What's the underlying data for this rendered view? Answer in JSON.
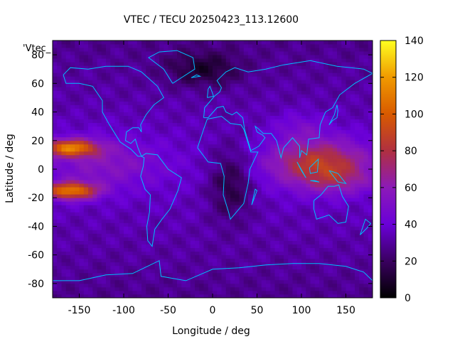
{
  "chart_data": {
    "type": "heatmap",
    "title": "VTEC / TECU 20250423_113.12600",
    "xlabel": "Longitude / deg",
    "ylabel": "Latitude / deg",
    "key_label": "'Vtec_",
    "xlim": [
      -180,
      180
    ],
    "ylim": [
      -90,
      90
    ],
    "x_ticks": [
      -150,
      -100,
      -50,
      0,
      50,
      100,
      150
    ],
    "y_ticks": [
      -80,
      -60,
      -40,
      -20,
      0,
      20,
      40,
      60,
      80
    ],
    "colorbar": {
      "min": 0,
      "max": 140,
      "ticks": [
        0,
        20,
        40,
        60,
        80,
        100,
        120,
        140
      ],
      "palette": [
        "#000000",
        "#3a0060",
        "#6a00d8",
        "#8c1ab8",
        "#b03040",
        "#d85a00",
        "#f09a00",
        "#ffff20"
      ]
    },
    "grid": false,
    "coastline_color": "#00bfff",
    "blobs": [
      {
        "lon": 120,
        "lat": 5,
        "slon": 55,
        "slat": 16,
        "amp": 48
      },
      {
        "lon": 140,
        "lat": -8,
        "slon": 40,
        "slat": 10,
        "amp": 18
      },
      {
        "lon": -160,
        "lat": 15,
        "slon": 30,
        "slat": 6,
        "amp": 70
      },
      {
        "lon": -160,
        "lat": -15,
        "slon": 30,
        "slat": 6,
        "amp": 72
      },
      {
        "lon": -120,
        "lat": 5,
        "slon": 60,
        "slat": 18,
        "amp": 18
      },
      {
        "lon": 20,
        "lat": -10,
        "slon": 25,
        "slat": 25,
        "amp": -22
      },
      {
        "lon": -10,
        "lat": 70,
        "slon": 40,
        "slat": 12,
        "amp": -20
      },
      {
        "lon": 100,
        "lat": 30,
        "slon": 30,
        "slat": 10,
        "amp": 12
      }
    ]
  }
}
